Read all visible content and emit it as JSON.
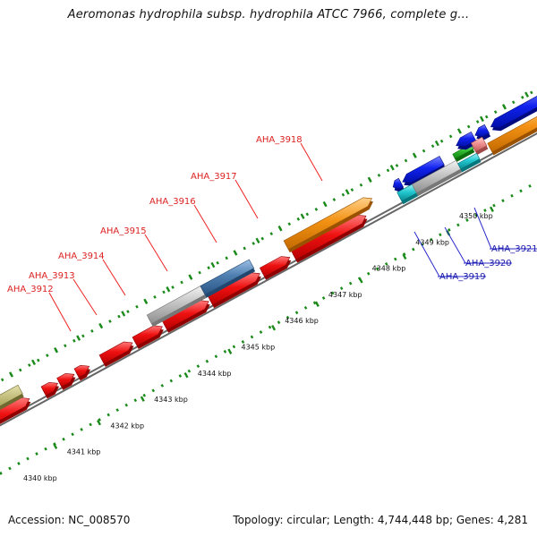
{
  "header": {
    "title": "Aeromonas hydrophila subsp. hydrophila ATCC 7966, complete g..."
  },
  "footer": {
    "accession": "Accession: NC_008570",
    "summary": "Topology: circular; Length: 4,744,448 bp; Genes: 4,281"
  },
  "map": {
    "coordinate_labels": [
      "4340 kbp",
      "4341 kbp",
      "4342 kbp",
      "4343 kbp",
      "4344 kbp",
      "4345 kbp",
      "4346 kbp",
      "4347 kbp",
      "4348 kbp",
      "4349 kbp",
      "4350 kbp"
    ],
    "genes": [
      {
        "label": "AHA_3912",
        "strand": "forward",
        "color": "#dd2222"
      },
      {
        "label": "AHA_3913",
        "strand": "forward",
        "color": "#dd2222"
      },
      {
        "label": "AHA_3914",
        "strand": "forward",
        "color": "#dd2222"
      },
      {
        "label": "AHA_3915",
        "strand": "forward",
        "color": "#dd2222"
      },
      {
        "label": "AHA_3916",
        "strand": "forward",
        "color": "#dd2222"
      },
      {
        "label": "AHA_3917",
        "strand": "forward",
        "color": "#dd2222"
      },
      {
        "label": "AHA_3918",
        "strand": "forward",
        "color": "#dd2222"
      },
      {
        "label": "AHA_3919",
        "strand": "reverse",
        "color": "#1a1aaa"
      },
      {
        "label": "AHA_3920",
        "strand": "reverse",
        "color": "#1a1aaa"
      },
      {
        "label": "AHA_3921",
        "strand": "reverse",
        "color": "#1a1aaa"
      }
    ],
    "colors": {
      "forward_gene": "#ee1111",
      "reverse_gene": "#1122ee",
      "backbone": "#666666",
      "tick": "#1a8a1a",
      "pseudo_gene": "#bbbbbb",
      "orange_feature": "#f39214",
      "steelblue_feature": "#4f7fb0",
      "olive_feature": "#b5b06a",
      "cyan_feature": "#22c8d0",
      "green_feature": "#33bb33",
      "pink_feature": "#ef8f8f"
    }
  }
}
